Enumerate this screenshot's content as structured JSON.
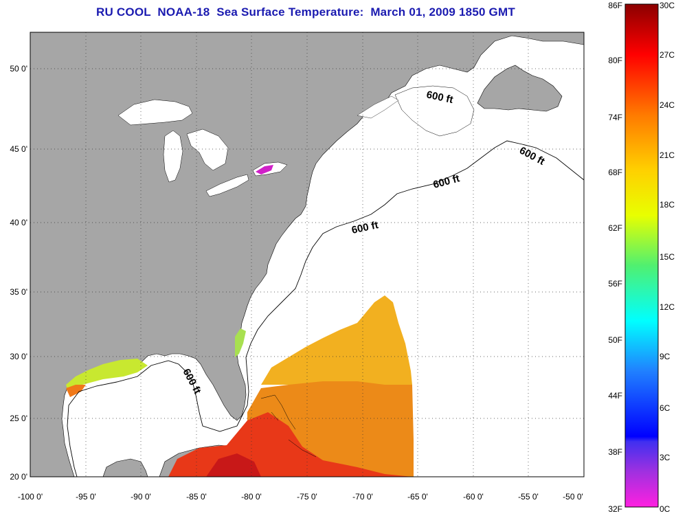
{
  "title": "RU COOL  NOAA-18  Sea Surface Temperature:  March 01, 2009 1850 GMT",
  "map": {
    "lon_labels": [
      "-100 0'",
      "-95 0'",
      "-90 0'",
      "-85 0'",
      "-80 0'",
      "-75 0'",
      "-70 0'",
      "-65 0'",
      "-60 0'",
      "-55 0'",
      "-50 0'"
    ],
    "lat_labels": [
      "50 0'",
      "45 0'",
      "40 0'",
      "35 0'",
      "30 0'",
      "25 0'",
      "20 0'"
    ],
    "lon_range": [
      -100,
      -50
    ],
    "lat_range": [
      20,
      52.5
    ],
    "grid": "dotted",
    "contour_label": "600 ft",
    "colors": {
      "land": "#a6a6a6",
      "water": "#ffffff",
      "border": "#000000"
    }
  },
  "colorbar": {
    "fahrenheit_labels": [
      "86F",
      "80F",
      "74F",
      "68F",
      "62F",
      "56F",
      "50F",
      "44F",
      "38F",
      "32F"
    ],
    "celsius_labels": [
      "30C",
      "27C",
      "24C",
      "21C",
      "18C",
      "15C",
      "12C",
      "9C",
      "6C",
      "3C",
      "0C"
    ],
    "range_c": [
      0,
      30
    ],
    "range_f": [
      32,
      86
    ]
  }
}
